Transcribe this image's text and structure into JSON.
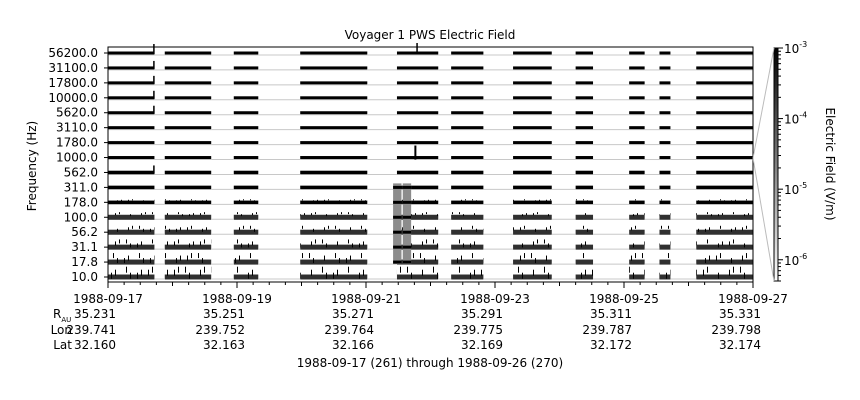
{
  "chart_data": {
    "type": "heatmap",
    "title": "Voyager 1 PWS Electric Field",
    "ylabel": "Frequency (Hz)",
    "colorbar_label": "Electric Field (V/m)",
    "colorbar_scale": "log",
    "colorbar_range": [
      5e-07,
      0.001
    ],
    "colorbar_ticks": [
      {
        "base": "10",
        "exp": "-3",
        "value": 0.001
      },
      {
        "base": "10",
        "exp": "-4",
        "value": 0.0001
      },
      {
        "base": "10",
        "exp": "-5",
        "value": 1e-05
      },
      {
        "base": "10",
        "exp": "-6",
        "value": 1e-06
      }
    ],
    "channels": [
      "10.0",
      "17.8",
      "31.1",
      "56.2",
      "100.0",
      "178.0",
      "311.0",
      "562.0",
      "1000.0",
      "1780.0",
      "3110.0",
      "5620.0",
      "10000.0",
      "17800.0",
      "31100.0",
      "56200.0"
    ],
    "x_ticks": [
      "1988-09-17",
      "1988-09-19",
      "1988-09-21",
      "1988-09-23",
      "1988-09-25",
      "1988-09-27"
    ],
    "x_range_days": [
      0,
      10
    ],
    "data_gaps_days": [
      [
        0.72,
        0.88
      ],
      [
        1.6,
        1.95
      ],
      [
        2.33,
        2.98
      ],
      [
        4.02,
        4.48
      ],
      [
        5.12,
        5.32
      ],
      [
        5.82,
        6.28
      ],
      [
        6.88,
        7.25
      ],
      [
        7.52,
        8.08
      ],
      [
        8.32,
        8.55
      ],
      [
        8.72,
        9.12
      ]
    ],
    "ephemeris": {
      "labels": {
        "r_main": "R",
        "r_sub": "AU",
        "lon": "Lon",
        "lat": "Lat"
      },
      "R": [
        "35.231",
        "35.251",
        "35.271",
        "35.291",
        "35.311",
        "35.331"
      ],
      "Lon": [
        "239.741",
        "239.752",
        "239.764",
        "239.775",
        "239.787",
        "239.798"
      ],
      "Lat": [
        "32.160",
        "32.163",
        "32.166",
        "32.169",
        "32.172",
        "32.174"
      ]
    },
    "xlabel": "1988-09-17 (261) through 1988-09-26 (270)"
  }
}
